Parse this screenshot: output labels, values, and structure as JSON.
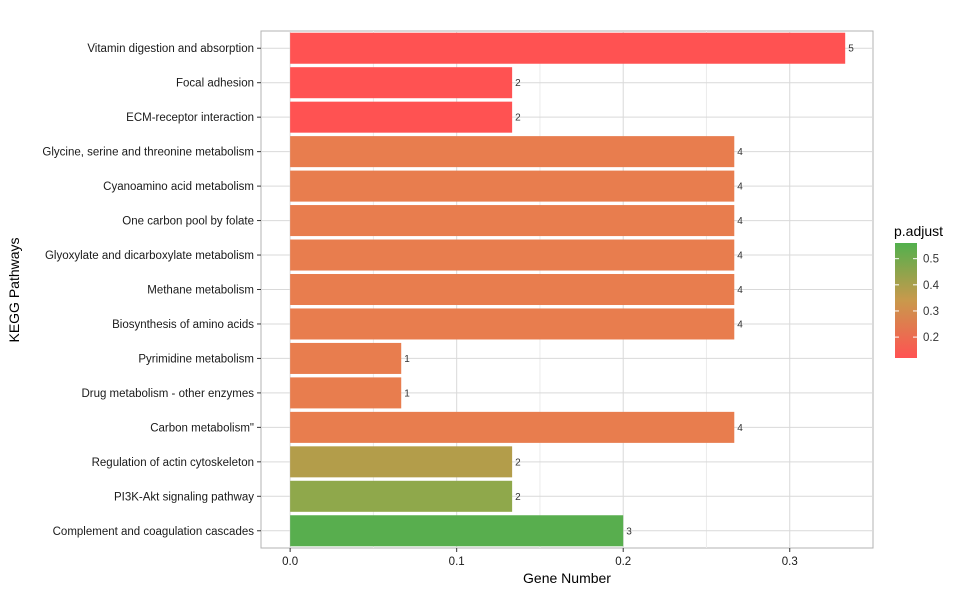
{
  "chart_data": {
    "type": "bar",
    "orientation": "horizontal",
    "title": "",
    "xlabel": "Gene Number",
    "ylabel": "KEGG Pathways",
    "xlim": [
      -0.0175,
      0.35
    ],
    "xticks": [
      0.0,
      0.1,
      0.2,
      0.3
    ],
    "xtick_labels": [
      "0.0",
      "0.1",
      "0.2",
      "0.3"
    ],
    "grid": true,
    "categories": [
      "Vitamin digestion and absorption",
      "Focal adhesion",
      "ECM-receptor interaction",
      "Glycine, serine and threonine metabolism",
      "Cyanoamino acid metabolism",
      "One carbon pool by folate",
      "Glyoxylate and dicarboxylate metabolism",
      "Methane metabolism",
      "Biosynthesis of amino acids",
      "Pyrimidine metabolism",
      "Drug metabolism - other enzymes",
      "Carbon metabolism\"",
      "Regulation of actin cytoskeleton",
      "PI3K-Akt signaling pathway",
      "Complement and coagulation cascades"
    ],
    "values": [
      0.3333,
      0.1333,
      0.1333,
      0.2667,
      0.2667,
      0.2667,
      0.2667,
      0.2667,
      0.2667,
      0.0667,
      0.0667,
      0.2667,
      0.1333,
      0.1333,
      0.2
    ],
    "counts": [
      "5",
      "2",
      "2",
      "4",
      "4",
      "4",
      "4",
      "4",
      "4",
      "1",
      "1",
      "4",
      "2",
      "2",
      "3"
    ],
    "p_adjust": [
      0.12,
      0.12,
      0.12,
      0.26,
      0.26,
      0.26,
      0.26,
      0.26,
      0.26,
      0.26,
      0.26,
      0.26,
      0.41,
      0.47,
      0.56
    ],
    "colors": [
      "#ff5252",
      "#ff5252",
      "#ff5252",
      "#e87d4e",
      "#e87d4e",
      "#e87d4e",
      "#e87d4e",
      "#e87d4e",
      "#e87d4e",
      "#e87d4e",
      "#e87d4e",
      "#e87d4e",
      "#b39d4a",
      "#8fa84b",
      "#58ae4e"
    ],
    "legend": {
      "title": "p.adjust",
      "placement": "right",
      "range": [
        0.12,
        0.56
      ],
      "ticks": [
        0.2,
        0.3,
        0.4,
        0.5
      ],
      "tick_labels": [
        "0.2",
        "0.3",
        "0.4",
        "0.5"
      ],
      "color_low": "#ff5252",
      "color_mid": "#c9994c",
      "color_high": "#52b04d"
    }
  }
}
